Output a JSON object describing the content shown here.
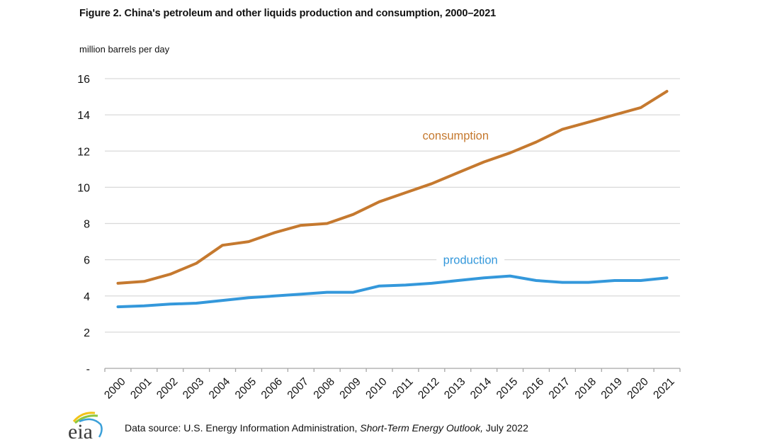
{
  "figure": {
    "title": "Figure 2. China's petroleum and other liquids production and consumption, 2000–2021",
    "unit_label": "million barrels per day",
    "source_prefix": "Data source: U.S. Energy Information Administration, ",
    "source_italic": "Short-Term Energy Outlook,",
    "source_suffix": " July 2022",
    "logo_text": "eia"
  },
  "chart_data": {
    "type": "line",
    "title": "Figure 2. China's petroleum and other liquids production and consumption, 2000–2021",
    "xlabel": "",
    "ylabel": "million barrels per day",
    "categories": [
      "2000",
      "2001",
      "2002",
      "2003",
      "2004",
      "2005",
      "2006",
      "2007",
      "2008",
      "2009",
      "2010",
      "2011",
      "2012",
      "2013",
      "2014",
      "2015",
      "2016",
      "2017",
      "2018",
      "2019",
      "2020",
      "2021"
    ],
    "ylim": [
      0,
      16
    ],
    "yticks": [
      0,
      2,
      4,
      6,
      8,
      10,
      12,
      14,
      16
    ],
    "ytick_labels": [
      "-",
      "2",
      "4",
      "6",
      "8",
      "10",
      "12",
      "14",
      "16"
    ],
    "grid": true,
    "legend": "inline labels",
    "series": [
      {
        "name": "consumption",
        "color": "#C5792F",
        "label_anchor_year": "2013",
        "values": [
          4.7,
          4.8,
          5.2,
          5.8,
          6.8,
          7.0,
          7.5,
          7.9,
          8.0,
          8.5,
          9.2,
          9.7,
          10.2,
          10.8,
          11.4,
          11.9,
          12.5,
          13.2,
          13.6,
          14.0,
          14.4,
          15.3
        ]
      },
      {
        "name": "production",
        "color": "#3498DB",
        "label_anchor_year": "2014",
        "values": [
          3.4,
          3.45,
          3.55,
          3.6,
          3.75,
          3.9,
          4.0,
          4.1,
          4.2,
          4.2,
          4.55,
          4.6,
          4.7,
          4.85,
          5.0,
          5.1,
          4.85,
          4.75,
          4.75,
          4.85,
          4.85,
          5.0
        ]
      }
    ]
  }
}
